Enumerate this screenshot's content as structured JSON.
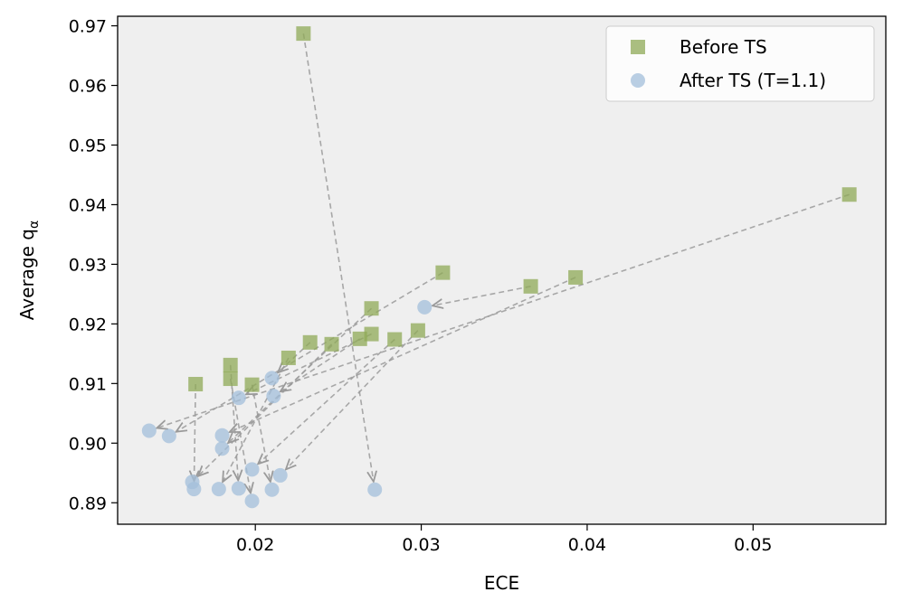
{
  "chart_data": {
    "type": "scatter",
    "xlabel": "ECE",
    "ylabel": "Average q",
    "ylabel_subscript": "α",
    "xlim": [
      0.0117,
      0.058
    ],
    "ylim": [
      0.8864,
      0.9716
    ],
    "x_ticks": [
      0.02,
      0.03,
      0.04,
      0.05
    ],
    "x_tick_labels": [
      "0.02",
      "0.03",
      "0.04",
      "0.05"
    ],
    "y_ticks": [
      0.89,
      0.9,
      0.91,
      0.92,
      0.93,
      0.94,
      0.95,
      0.96,
      0.97
    ],
    "y_tick_labels": [
      "0.89",
      "0.90",
      "0.91",
      "0.92",
      "0.93",
      "0.94",
      "0.95",
      "0.96",
      "0.97"
    ],
    "grid": false,
    "background": "#efefef",
    "legend_position": "top-right",
    "series": [
      {
        "name": "Before TS",
        "marker": "square",
        "color": "#8faa57",
        "points": [
          [
            0.0229,
            0.9687
          ],
          [
            0.0558,
            0.9417
          ],
          [
            0.0313,
            0.9286
          ],
          [
            0.0393,
            0.9278
          ],
          [
            0.0366,
            0.9263
          ],
          [
            0.027,
            0.9226
          ],
          [
            0.0298,
            0.9189
          ],
          [
            0.027,
            0.9183
          ],
          [
            0.0263,
            0.9175
          ],
          [
            0.0284,
            0.9174
          ],
          [
            0.0233,
            0.9169
          ],
          [
            0.0246,
            0.9166
          ],
          [
            0.022,
            0.9143
          ],
          [
            0.0185,
            0.9131
          ],
          [
            0.0185,
            0.9108
          ],
          [
            0.0198,
            0.9098
          ],
          [
            0.0164,
            0.9099
          ]
        ]
      },
      {
        "name": "After TS (T=1.1)",
        "marker": "circle",
        "color": "#a3bfdb",
        "points": [
          [
            0.0272,
            0.8922
          ],
          [
            0.0136,
            0.9021
          ],
          [
            0.0302,
            0.9228
          ],
          [
            0.019,
            0.9076
          ],
          [
            0.021,
            0.9109
          ],
          [
            0.0211,
            0.9079
          ],
          [
            0.0148,
            0.9012
          ],
          [
            0.018,
            0.9013
          ],
          [
            0.018,
            0.8991
          ],
          [
            0.0162,
            0.8935
          ],
          [
            0.0163,
            0.8923
          ],
          [
            0.0178,
            0.8923
          ],
          [
            0.019,
            0.8924
          ],
          [
            0.0198,
            0.8956
          ],
          [
            0.0198,
            0.8903
          ],
          [
            0.021,
            0.8922
          ],
          [
            0.0215,
            0.8946
          ]
        ]
      }
    ],
    "arrows": [
      {
        "from": [
          0.0229,
          0.9687
        ],
        "to": [
          0.0272,
          0.8922
        ]
      },
      {
        "from": [
          0.0558,
          0.9417
        ],
        "to": [
          0.0136,
          0.9021
        ]
      },
      {
        "from": [
          0.0366,
          0.9263
        ],
        "to": [
          0.0302,
          0.9228
        ]
      },
      {
        "from": [
          0.0393,
          0.9278
        ],
        "to": [
          0.018,
          0.9013
        ]
      },
      {
        "from": [
          0.0313,
          0.9286
        ],
        "to": [
          0.0148,
          0.9012
        ]
      },
      {
        "from": [
          0.027,
          0.9226
        ],
        "to": [
          0.018,
          0.8991
        ]
      },
      {
        "from": [
          0.0298,
          0.9189
        ],
        "to": [
          0.0215,
          0.8946
        ]
      },
      {
        "from": [
          0.0284,
          0.9174
        ],
        "to": [
          0.0198,
          0.8956
        ]
      },
      {
        "from": [
          0.027,
          0.9183
        ],
        "to": [
          0.019,
          0.9076
        ]
      },
      {
        "from": [
          0.0263,
          0.9175
        ],
        "to": [
          0.0211,
          0.9079
        ]
      },
      {
        "from": [
          0.0246,
          0.9166
        ],
        "to": [
          0.0162,
          0.8935
        ]
      },
      {
        "from": [
          0.0233,
          0.9169
        ],
        "to": [
          0.021,
          0.9109
        ]
      },
      {
        "from": [
          0.022,
          0.9143
        ],
        "to": [
          0.0178,
          0.8923
        ]
      },
      {
        "from": [
          0.0185,
          0.9131
        ],
        "to": [
          0.019,
          0.8924
        ]
      },
      {
        "from": [
          0.0185,
          0.9108
        ],
        "to": [
          0.0198,
          0.8903
        ]
      },
      {
        "from": [
          0.0198,
          0.9098
        ],
        "to": [
          0.021,
          0.8922
        ]
      },
      {
        "from": [
          0.0164,
          0.9099
        ],
        "to": [
          0.0163,
          0.8923
        ]
      }
    ]
  }
}
